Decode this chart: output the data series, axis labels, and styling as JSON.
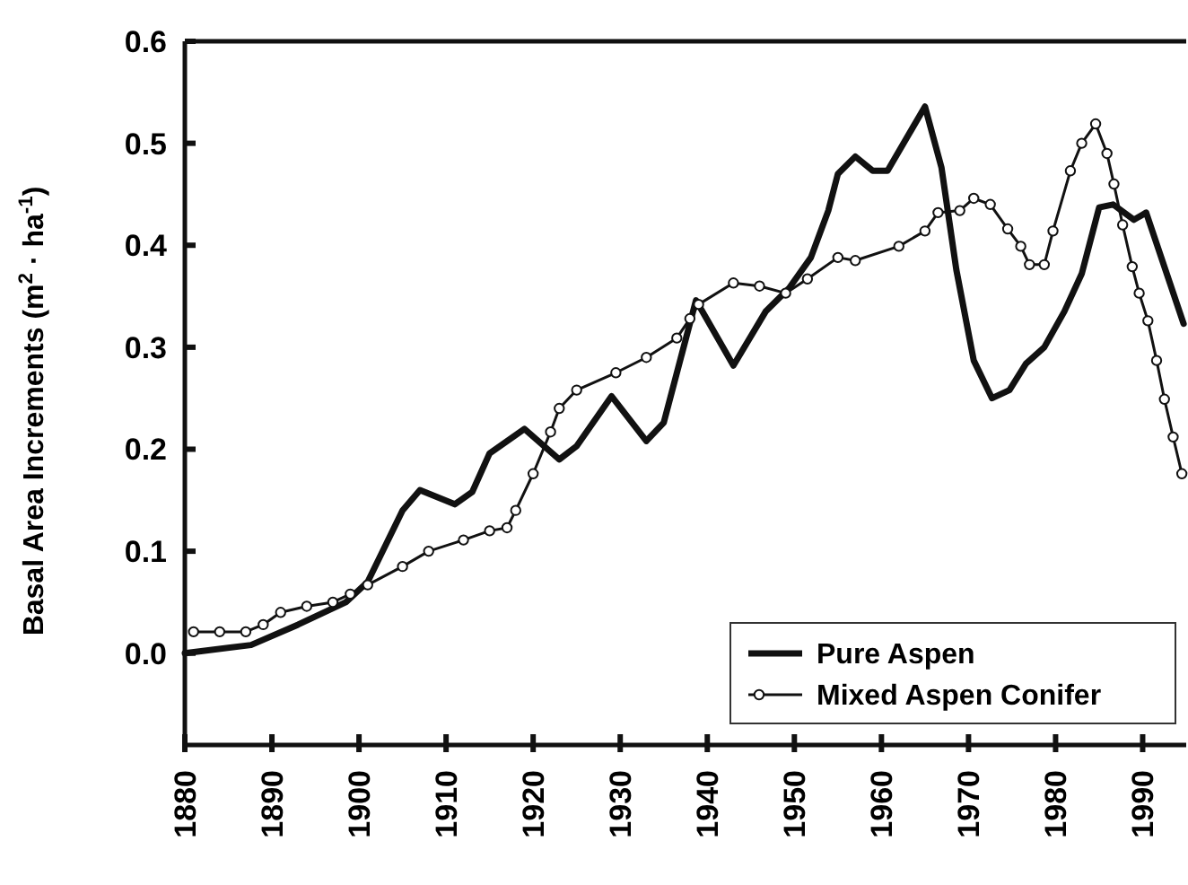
{
  "chart_data": {
    "type": "line",
    "ylabel": "Basal Area Increments (m$^{2}$ · ha$^{-1}$)",
    "xlim": [
      1880,
      1995
    ],
    "xticks": [
      1880,
      1890,
      1900,
      1910,
      1920,
      1930,
      1940,
      1950,
      1960,
      1970,
      1980,
      1990
    ],
    "ylim": [
      -0.09,
      0.6
    ],
    "yticks": [
      {
        "value": 0,
        "label": "0.0"
      },
      0.1,
      0.2,
      0.3,
      0.4,
      0.5,
      0.6
    ],
    "grid": false,
    "legend": "bottom right",
    "line_style": "solid",
    "series": [
      {
        "name": "Pure Aspen",
        "color": "#111111",
        "marker": "none",
        "x": [
          1880,
          1887.6,
          1893,
          1898.5,
          1901,
          1905,
          1907,
          1911,
          1913,
          1915,
          1919,
          1923,
          1925,
          1929,
          1933,
          1935,
          1938.7,
          1943,
          1946.7,
          1949.4,
          1951.9,
          1953.9,
          1955,
          1957,
          1959,
          1960.7,
          1965,
          1966.9,
          1968.6,
          1970.6,
          1972.7,
          1974.7,
          1976.6,
          1978.7,
          1981,
          1983,
          1985,
          1986.6,
          1989,
          1990.4,
          1994.7
        ],
        "values": [
          0.0,
          0.008,
          0.028,
          0.05,
          0.07,
          0.14,
          0.16,
          0.146,
          0.158,
          0.196,
          0.22,
          0.19,
          0.203,
          0.252,
          0.208,
          0.226,
          0.346,
          0.282,
          0.335,
          0.358,
          0.388,
          0.434,
          0.47,
          0.487,
          0.473,
          0.473,
          0.536,
          0.476,
          0.376,
          0.287,
          0.25,
          0.258,
          0.284,
          0.3,
          0.335,
          0.372,
          0.437,
          0.44,
          0.425,
          0.432,
          0.323
        ]
      },
      {
        "name": "Mixed Aspen Conifer",
        "color": "#111111",
        "marker": "circle",
        "x": [
          1881,
          1884,
          1887,
          1889,
          1891,
          1894,
          1897,
          1899,
          1901,
          1905,
          1908,
          1912,
          1915,
          1917,
          1918,
          1920,
          1922,
          1923,
          1925,
          1929.5,
          1933,
          1936.5,
          1938,
          1939,
          1943,
          1946,
          1949,
          1951.5,
          1955,
          1957,
          1962,
          1965,
          1966.5,
          1969,
          1970.6,
          1972.5,
          1974.5,
          1976,
          1977,
          1978.7,
          1979.7,
          1981.7,
          1983,
          1984.6,
          1985.9,
          1986.7,
          1987.7,
          1988.8,
          1989.6,
          1990.6,
          1991.6,
          1992.5,
          1993.5,
          1994.5
        ],
        "values": [
          0.021,
          0.021,
          0.021,
          0.028,
          0.04,
          0.046,
          0.05,
          0.058,
          0.067,
          0.085,
          0.1,
          0.111,
          0.12,
          0.123,
          0.14,
          0.176,
          0.217,
          0.24,
          0.258,
          0.275,
          0.29,
          0.309,
          0.328,
          0.342,
          0.363,
          0.36,
          0.353,
          0.367,
          0.388,
          0.385,
          0.399,
          0.414,
          0.432,
          0.434,
          0.446,
          0.44,
          0.416,
          0.399,
          0.381,
          0.381,
          0.414,
          0.473,
          0.5,
          0.519,
          0.49,
          0.46,
          0.42,
          0.379,
          0.353,
          0.326,
          0.287,
          0.249,
          0.212,
          0.176
        ]
      }
    ]
  }
}
